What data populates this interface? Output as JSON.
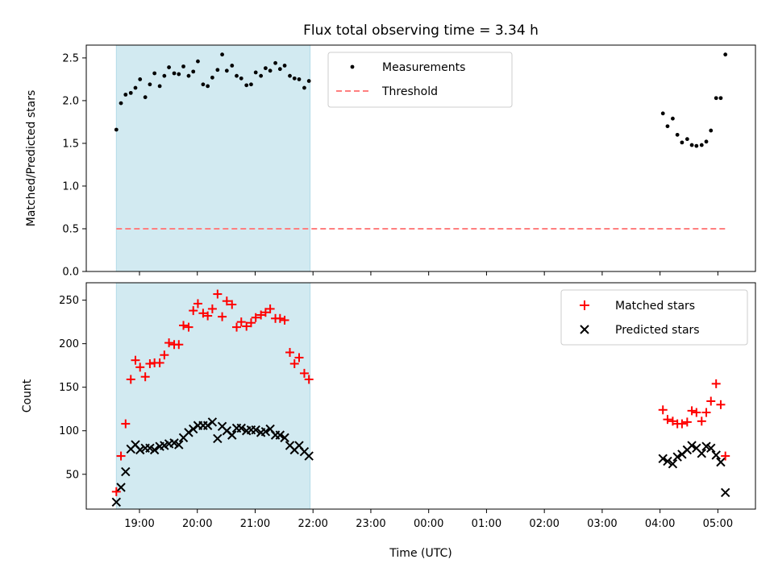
{
  "chart_data": {
    "title": "Flux total observing time = 3.34 h",
    "xlabel": "Time (UTC)",
    "x_tick_labels": [
      "19:00",
      "20:00",
      "21:00",
      "22:00",
      "23:00",
      "00:00",
      "01:00",
      "02:00",
      "03:00",
      "04:00",
      "05:00"
    ],
    "x_tick_hours": [
      19,
      20,
      21,
      22,
      23,
      24,
      25,
      26,
      27,
      28,
      29
    ],
    "xlim_hours": [
      18.08,
      29.65
    ],
    "shaded_span_hours": [
      18.6,
      21.95
    ],
    "shade_color": "#add8e6",
    "panels": [
      {
        "type": "scatter",
        "ylabel": "Matched/Predicted stars",
        "ylim": [
          0,
          2.65
        ],
        "yticks": [
          0.0,
          0.5,
          1.0,
          1.5,
          2.0,
          2.5
        ],
        "ytick_labels": [
          "0.0",
          "0.5",
          "1.0",
          "1.5",
          "2.0",
          "2.5"
        ],
        "legend_position": "upper-center",
        "legend": [
          {
            "label": "Measurements",
            "marker": "dot",
            "color": "#000000"
          },
          {
            "label": "Threshold",
            "marker": "dashed-line",
            "color": "#ff7f7f"
          }
        ],
        "threshold": {
          "value": 0.5,
          "x_range_hours": [
            18.6,
            29.15
          ],
          "color": "#ff7f7f"
        },
        "series": [
          {
            "name": "Measurements",
            "color": "#000000",
            "x_hours": [
              18.6,
              18.68,
              18.76,
              18.85,
              18.93,
              19.01,
              19.1,
              19.18,
              19.26,
              19.35,
              19.43,
              19.51,
              19.6,
              19.68,
              19.76,
              19.85,
              19.93,
              20.01,
              20.1,
              20.18,
              20.26,
              20.35,
              20.43,
              20.51,
              20.6,
              20.68,
              20.76,
              20.85,
              20.93,
              21.01,
              21.1,
              21.18,
              21.26,
              21.35,
              21.43,
              21.51,
              21.6,
              21.68,
              21.76,
              21.85,
              21.93,
              28.05,
              28.13,
              28.22,
              28.3,
              28.38,
              28.47,
              28.55,
              28.63,
              28.72,
              28.8,
              28.88,
              28.97,
              29.05,
              29.13
            ],
            "y": [
              1.66,
              1.97,
              2.07,
              2.09,
              2.15,
              2.25,
              2.04,
              2.19,
              2.32,
              2.17,
              2.29,
              2.39,
              2.32,
              2.31,
              2.4,
              2.29,
              2.34,
              2.46,
              2.19,
              2.17,
              2.27,
              2.36,
              2.54,
              2.35,
              2.41,
              2.29,
              2.26,
              2.18,
              2.19,
              2.33,
              2.29,
              2.38,
              2.35,
              2.44,
              2.37,
              2.41,
              2.29,
              2.26,
              2.25,
              2.15,
              2.23,
              1.85,
              1.7,
              1.79,
              1.6,
              1.51,
              1.55,
              1.48,
              1.47,
              1.48,
              1.52,
              1.65,
              2.03,
              2.03,
              2.54
            ]
          }
        ]
      },
      {
        "type": "scatter",
        "ylabel": "Count",
        "ylim": [
          10,
          270
        ],
        "yticks": [
          50,
          100,
          150,
          200,
          250
        ],
        "ytick_labels": [
          "50",
          "100",
          "150",
          "200",
          "250"
        ],
        "legend_position": "upper-right",
        "legend": [
          {
            "label": "Matched stars",
            "marker": "plus",
            "color": "#ff0000"
          },
          {
            "label": "Predicted stars",
            "marker": "x",
            "color": "#000000"
          }
        ],
        "series": [
          {
            "name": "Matched stars",
            "marker": "plus",
            "color": "#ff0000",
            "x_hours": [
              18.6,
              18.68,
              18.76,
              18.85,
              18.93,
              19.01,
              19.1,
              19.18,
              19.26,
              19.35,
              19.43,
              19.51,
              19.6,
              19.68,
              19.76,
              19.85,
              19.93,
              20.01,
              20.1,
              20.18,
              20.26,
              20.35,
              20.43,
              20.51,
              20.6,
              20.68,
              20.76,
              20.85,
              20.93,
              21.01,
              21.1,
              21.18,
              21.26,
              21.35,
              21.43,
              21.51,
              21.6,
              21.68,
              21.76,
              21.85,
              21.93,
              28.05,
              28.13,
              28.22,
              28.3,
              28.38,
              28.47,
              28.55,
              28.63,
              28.72,
              28.8,
              28.88,
              28.97,
              29.05,
              29.13
            ],
            "y": [
              30,
              71,
              108,
              159,
              181,
              173,
              162,
              177,
              178,
              178,
              187,
              201,
              199,
              199,
              221,
              219,
              238,
              246,
              235,
              232,
              240,
              257,
              231,
              249,
              245,
              219,
              225,
              220,
              224,
              230,
              233,
              236,
              240,
              229,
              229,
              227,
              190,
              177,
              184,
              166,
              159,
              124,
              113,
              111,
              108,
              108,
              110,
              123,
              121,
              111,
              121,
              134,
              154,
              130,
              71
            ]
          },
          {
            "name": "Predicted stars",
            "marker": "x",
            "color": "#000000",
            "x_hours": [
              18.6,
              18.68,
              18.76,
              18.85,
              18.93,
              19.01,
              19.1,
              19.18,
              19.26,
              19.35,
              19.43,
              19.51,
              19.6,
              19.68,
              19.76,
              19.85,
              19.93,
              20.01,
              20.1,
              20.18,
              20.26,
              20.35,
              20.43,
              20.51,
              20.6,
              20.68,
              20.76,
              20.85,
              20.93,
              21.01,
              21.1,
              21.18,
              21.26,
              21.35,
              21.43,
              21.51,
              21.6,
              21.68,
              21.76,
              21.85,
              21.93,
              28.05,
              28.13,
              28.22,
              28.3,
              28.38,
              28.47,
              28.55,
              28.63,
              28.72,
              28.8,
              28.88,
              28.97,
              29.05,
              29.13
            ],
            "y": [
              18,
              35,
              53,
              79,
              84,
              78,
              80,
              80,
              78,
              82,
              83,
              85,
              86,
              84,
              92,
              98,
              102,
              106,
              106,
              106,
              110,
              91,
              105,
              100,
              95,
              103,
              103,
              100,
              101,
              101,
              98,
              99,
              102,
              95,
              95,
              92,
              83,
              78,
              83,
              76,
              71,
              68,
              65,
              62,
              70,
              73,
              78,
              83,
              80,
              74,
              82,
              80,
              72,
              64,
              29
            ]
          }
        ]
      }
    ]
  }
}
